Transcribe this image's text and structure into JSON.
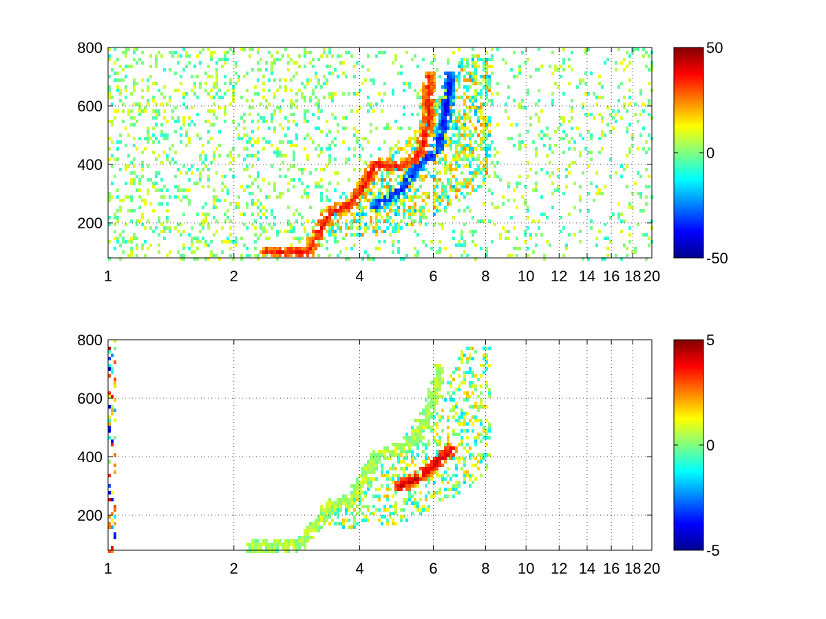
{
  "chart_data": [
    {
      "type": "heatmap",
      "title": "",
      "xlabel": "",
      "ylabel": "",
      "xlim": [
        1,
        20
      ],
      "ylim": [
        80,
        800
      ],
      "x_scale": "log",
      "x_ticks": [
        1,
        2,
        4,
        6,
        8,
        10,
        12,
        14,
        16,
        18,
        20
      ],
      "x_tick_labels": [
        "1",
        "2",
        "4",
        "6",
        "8",
        "10",
        "12",
        "14",
        "16",
        "18",
        "20"
      ],
      "y_ticks": [
        200,
        400,
        600,
        800
      ],
      "y_tick_labels": [
        "200",
        "400",
        "600",
        "800"
      ],
      "grid": true,
      "colormap": "jet",
      "clim": [
        -50,
        50
      ],
      "colorbar_ticks": [
        50,
        0,
        -50
      ],
      "colorbar_tick_labels": [
        "50",
        "0",
        "-50"
      ],
      "features": [
        {
          "name": "positive ridge",
          "value": 35,
          "points": [
            [
              2.4,
              100
            ],
            [
              3.0,
              100
            ],
            [
              3.4,
              235
            ],
            [
              3.8,
              260
            ],
            [
              4.4,
              400
            ],
            [
              5.0,
              390
            ],
            [
              5.5,
              420
            ],
            [
              5.8,
              520
            ],
            [
              5.9,
              700
            ]
          ]
        },
        {
          "name": "negative ridge",
          "value": -35,
          "points": [
            [
              4.4,
              260
            ],
            [
              5.0,
              310
            ],
            [
              5.6,
              410
            ],
            [
              6.1,
              440
            ],
            [
              6.4,
              560
            ],
            [
              6.6,
              700
            ]
          ]
        }
      ]
    },
    {
      "type": "heatmap",
      "title": "",
      "xlabel": "",
      "ylabel": "",
      "xlim": [
        1,
        20
      ],
      "ylim": [
        80,
        800
      ],
      "x_scale": "log",
      "x_ticks": [
        1,
        2,
        4,
        6,
        8,
        10,
        12,
        14,
        16,
        18,
        20
      ],
      "x_tick_labels": [
        "1",
        "2",
        "4",
        "6",
        "8",
        "10",
        "12",
        "14",
        "16",
        "18",
        "20"
      ],
      "y_ticks": [
        200,
        400,
        600,
        800
      ],
      "y_tick_labels": [
        "200",
        "400",
        "600",
        "800"
      ],
      "grid": true,
      "colormap": "jet",
      "clim": [
        -5,
        5
      ],
      "colorbar_ticks": [
        5,
        0,
        -5
      ],
      "colorbar_tick_labels": [
        "5",
        "0",
        "-5"
      ],
      "features": [
        {
          "name": "near-zero band",
          "value": 0.5,
          "points": [
            [
              2.2,
              95
            ],
            [
              2.9,
              100
            ],
            [
              3.4,
              230
            ],
            [
              3.8,
              250
            ],
            [
              4.4,
              400
            ],
            [
              5.0,
              430
            ],
            [
              5.5,
              470
            ],
            [
              5.9,
              560
            ],
            [
              6.2,
              700
            ]
          ]
        },
        {
          "name": "positive patch",
          "value": 4,
          "points": [
            [
              5.0,
              300
            ],
            [
              5.6,
              330
            ],
            [
              6.1,
              380
            ],
            [
              6.6,
              420
            ]
          ]
        }
      ]
    }
  ]
}
